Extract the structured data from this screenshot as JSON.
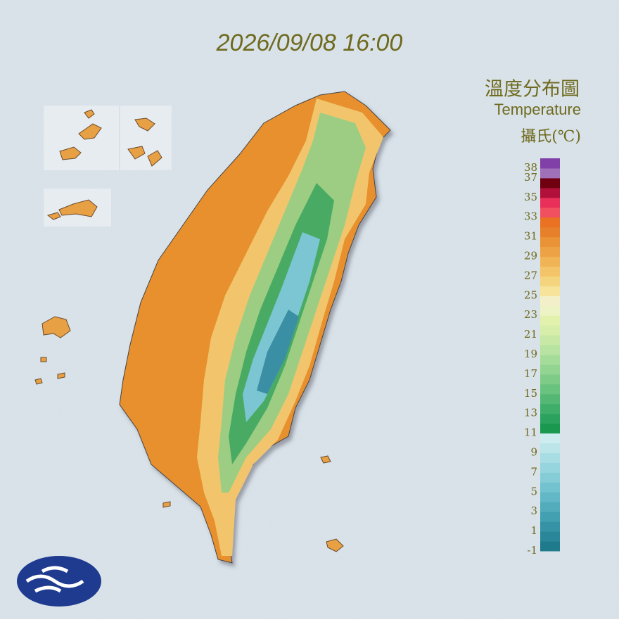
{
  "timestamp": "2026/09/08 16:00",
  "legend": {
    "title": "溫度分布圖",
    "subtitle": "Temperature",
    "unit": "攝氏(℃)",
    "min": -1,
    "max": 39,
    "ticks": [
      38,
      37,
      35,
      33,
      31,
      29,
      27,
      25,
      23,
      21,
      19,
      17,
      15,
      13,
      11,
      9,
      7,
      5,
      3,
      1,
      -1
    ],
    "colors": [
      "#1f7a8c",
      "#2a8799",
      "#3593a5",
      "#43a0b0",
      "#52acbc",
      "#62b8c6",
      "#73c2cf",
      "#85ccd7",
      "#97d5de",
      "#a9dde4",
      "#bce5ea",
      "#cdecef",
      "#1a9850",
      "#2ca25f",
      "#3fae6a",
      "#54b874",
      "#69c27e",
      "#7ecb88",
      "#93d492",
      "#a6dc9a",
      "#b8e3a1",
      "#c8e9a6",
      "#d6eea9",
      "#e2f2ac",
      "#eef3c6",
      "#f3efc8",
      "#f7e39a",
      "#f5d47e",
      "#f3c468",
      "#f0b456",
      "#eda345",
      "#ea9236",
      "#e6802a",
      "#ea7222",
      "#f05060",
      "#e8305a",
      "#b0103a",
      "#700010",
      "#a070b8",
      "#8040a8"
    ]
  }
}
